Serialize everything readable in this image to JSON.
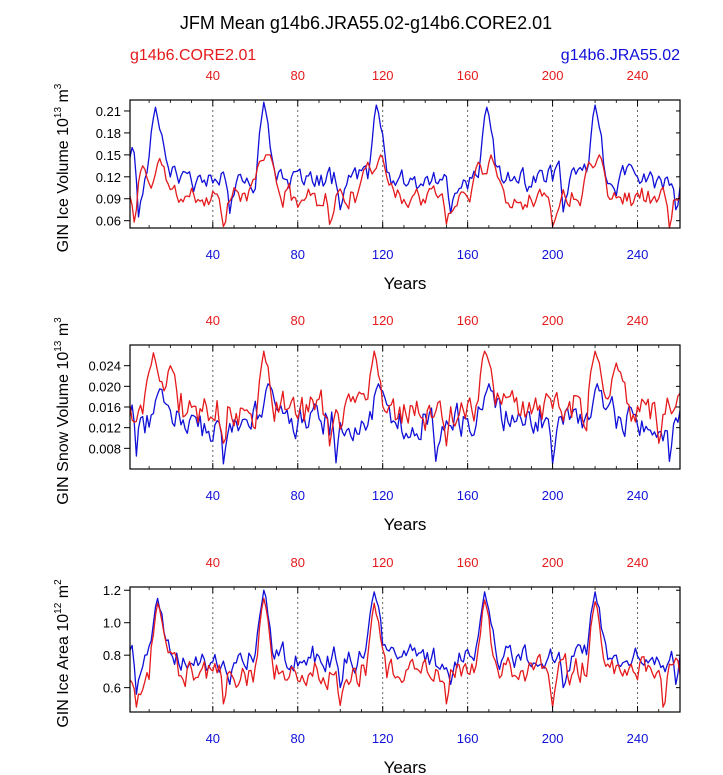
{
  "title": "JFM Mean g14b6.JRA55.02-g14b6.CORE2.01",
  "legend": {
    "left_label": "g14b6.CORE2.01",
    "right_label": "g14b6.JRA55.02"
  },
  "colors": {
    "core": "#e41a1c",
    "jra": "#1010d8",
    "axis": "#000000",
    "grid": "#555555"
  },
  "chart_data": [
    {
      "type": "line",
      "ylabel_main": "GIN Ice Volume 10",
      "ylabel_exp": "13",
      "ylabel_unit": "m",
      "ylabel_unit_exp": "3",
      "xlabel": "Years",
      "xlim": [
        1,
        260
      ],
      "ylim": [
        0.05,
        0.225
      ],
      "yticks": [
        0.06,
        0.09,
        0.12,
        0.15,
        0.18,
        0.21
      ],
      "ytick_labels": [
        "0.06",
        "0.09",
        "0.12",
        "0.15",
        "0.18",
        "0.21"
      ],
      "xticks": [
        40,
        80,
        120,
        160,
        200,
        240
      ],
      "xtick_labels": [
        "40",
        "80",
        "120",
        "160",
        "200",
        "240"
      ],
      "grid_x": [
        40,
        80,
        120,
        160,
        200,
        240
      ],
      "series": [
        {
          "name": "g14b6.CORE2.01",
          "base": 0.093,
          "amp": 0.014,
          "minv": 0.05,
          "maxv": 0.15,
          "seed": 11,
          "peaks": [
            [
              7,
              0.135
            ],
            [
              15,
              0.145
            ],
            [
              62,
              0.14
            ],
            [
              66,
              0.16
            ],
            [
              113,
              0.14
            ],
            [
              119,
              0.155
            ],
            [
              165,
              0.14
            ],
            [
              171,
              0.15
            ],
            [
              217,
              0.14
            ],
            [
              222,
              0.155
            ]
          ],
          "dips": [
            [
              3,
              0.058
            ],
            [
              45,
              0.052
            ],
            [
              95,
              0.055
            ],
            [
              150,
              0.055
            ],
            [
              200,
              0.052
            ],
            [
              255,
              0.05
            ]
          ]
        },
        {
          "name": "g14b6.JRA55.02",
          "base": 0.118,
          "amp": 0.016,
          "minv": 0.06,
          "maxv": 0.23,
          "seed": 23,
          "peaks": [
            [
              2,
              0.16
            ],
            [
              13,
              0.215
            ],
            [
              64,
              0.222
            ],
            [
              117,
              0.218
            ],
            [
              169,
              0.215
            ],
            [
              220,
              0.218
            ]
          ],
          "dips": [
            [
              5,
              0.065
            ],
            [
              48,
              0.07
            ],
            [
              100,
              0.075
            ],
            [
              152,
              0.07
            ],
            [
              205,
              0.072
            ],
            [
              258,
              0.075
            ]
          ]
        }
      ]
    },
    {
      "type": "line",
      "ylabel_main": "GIN Snow Volume 10",
      "ylabel_exp": "13",
      "ylabel_unit": "m",
      "ylabel_unit_exp": "3",
      "xlabel": "Years",
      "xlim": [
        1,
        260
      ],
      "ylim": [
        0.004,
        0.028
      ],
      "yticks": [
        0.008,
        0.012,
        0.016,
        0.02,
        0.024
      ],
      "ytick_labels": [
        "0.008",
        "0.012",
        "0.016",
        "0.020",
        "0.024"
      ],
      "xticks": [
        40,
        80,
        120,
        160,
        200,
        240
      ],
      "xtick_labels": [
        "40",
        "80",
        "120",
        "160",
        "200",
        "240"
      ],
      "grid_x": [
        40,
        80,
        120,
        160,
        200,
        240
      ],
      "series": [
        {
          "name": "g14b6.CORE2.01",
          "base": 0.0155,
          "amp": 0.0032,
          "minv": 0.008,
          "maxv": 0.0275,
          "seed": 37,
          "peaks": [
            [
              12,
              0.0265
            ],
            [
              20,
              0.024
            ],
            [
              64,
              0.0268
            ],
            [
              116,
              0.0268
            ],
            [
              168,
              0.0268
            ],
            [
              220,
              0.0268
            ],
            [
              230,
              0.0245
            ]
          ],
          "dips": [
            [
              45,
              0.009
            ],
            [
              95,
              0.0085
            ],
            [
              150,
              0.0085
            ],
            [
              250,
              0.009
            ]
          ]
        },
        {
          "name": "g14b6.JRA55.02",
          "base": 0.0135,
          "amp": 0.0032,
          "minv": 0.0045,
          "maxv": 0.022,
          "seed": 51,
          "peaks": [
            [
              3,
              0.0175
            ],
            [
              15,
              0.0195
            ],
            [
              66,
              0.0205
            ],
            [
              118,
              0.0205
            ],
            [
              170,
              0.0205
            ],
            [
              221,
              0.0205
            ]
          ],
          "dips": [
            [
              4,
              0.0065
            ],
            [
              45,
              0.005
            ],
            [
              98,
              0.0052
            ],
            [
              145,
              0.0055
            ],
            [
              200,
              0.005
            ],
            [
              255,
              0.0055
            ]
          ]
        }
      ]
    },
    {
      "type": "line",
      "ylabel_main": "GIN Ice Area 10",
      "ylabel_exp": "12",
      "ylabel_unit": "m",
      "ylabel_unit_exp": "2",
      "xlabel": "Years",
      "xlim": [
        1,
        260
      ],
      "ylim": [
        0.45,
        1.22
      ],
      "yticks": [
        0.6,
        0.8,
        1.0,
        1.2
      ],
      "ytick_labels": [
        "0.6",
        "0.8",
        "1.0",
        "1.2"
      ],
      "xticks": [
        40,
        80,
        120,
        160,
        200,
        240
      ],
      "xtick_labels": [
        "40",
        "80",
        "120",
        "160",
        "200",
        "240"
      ],
      "grid_x": [
        40,
        80,
        120,
        160,
        200,
        240
      ],
      "series": [
        {
          "name": "g14b6.CORE2.01",
          "base": 0.7,
          "amp": 0.08,
          "minv": 0.47,
          "maxv": 1.17,
          "seed": 63,
          "peaks": [
            [
              14,
              1.12
            ],
            [
              64,
              1.15
            ],
            [
              116,
              1.12
            ],
            [
              168,
              1.14
            ],
            [
              220,
              1.13
            ]
          ],
          "dips": [
            [
              4,
              0.48
            ],
            [
              45,
              0.5
            ],
            [
              100,
              0.49
            ],
            [
              150,
              0.5
            ],
            [
              200,
              0.48
            ],
            [
              252,
              0.48
            ]
          ]
        },
        {
          "name": "g14b6.JRA55.02",
          "base": 0.78,
          "amp": 0.07,
          "minv": 0.55,
          "maxv": 1.21,
          "seed": 79,
          "peaks": [
            [
              2,
              0.86
            ],
            [
              14,
              1.15
            ],
            [
              64,
              1.2
            ],
            [
              116,
              1.19
            ],
            [
              168,
              1.19
            ],
            [
              220,
              1.19
            ]
          ],
          "dips": [
            [
              4,
              0.56
            ],
            [
              48,
              0.62
            ],
            [
              100,
              0.6
            ],
            [
              152,
              0.62
            ],
            [
              205,
              0.6
            ],
            [
              258,
              0.62
            ]
          ]
        }
      ]
    }
  ]
}
